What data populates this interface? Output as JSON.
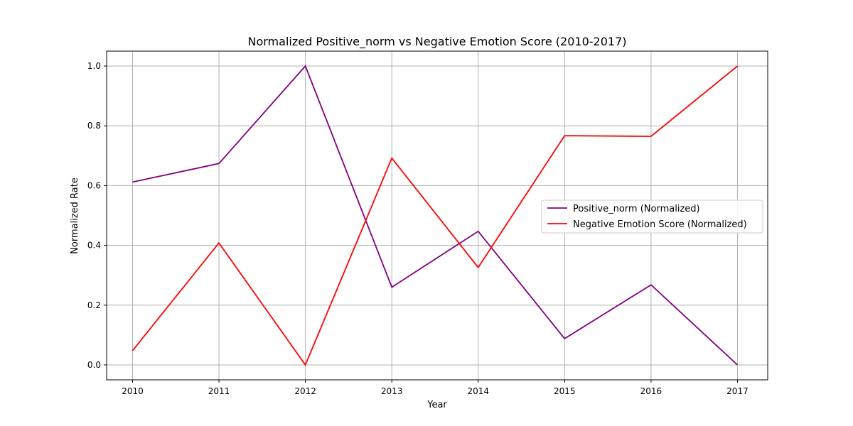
{
  "chart_data": {
    "type": "line",
    "title": "Normalized Positive_norm vs Negative Emotion Score (2010-2017)",
    "xlabel": "Year",
    "ylabel": "Normalized Rate",
    "x": [
      "2010",
      "2011",
      "2012",
      "2013",
      "2014",
      "2015",
      "2016",
      "2017"
    ],
    "xlim": [
      2009.7,
      2017.35
    ],
    "ylim": [
      -0.05,
      1.05
    ],
    "yticks": [
      "0.0",
      "0.2",
      "0.4",
      "0.6",
      "0.8",
      "1.0"
    ],
    "grid": true,
    "legend_position": "center-right",
    "series": [
      {
        "name": "Positive_norm (Normalized)",
        "color": "#800080",
        "values": [
          0.612,
          0.674,
          1.0,
          0.26,
          0.447,
          0.088,
          0.268,
          0.0
        ]
      },
      {
        "name": "Negative Emotion Score (Normalized)",
        "color": "#ff0000",
        "values": [
          0.048,
          0.408,
          0.0,
          0.692,
          0.326,
          0.767,
          0.765,
          1.0
        ]
      }
    ]
  }
}
